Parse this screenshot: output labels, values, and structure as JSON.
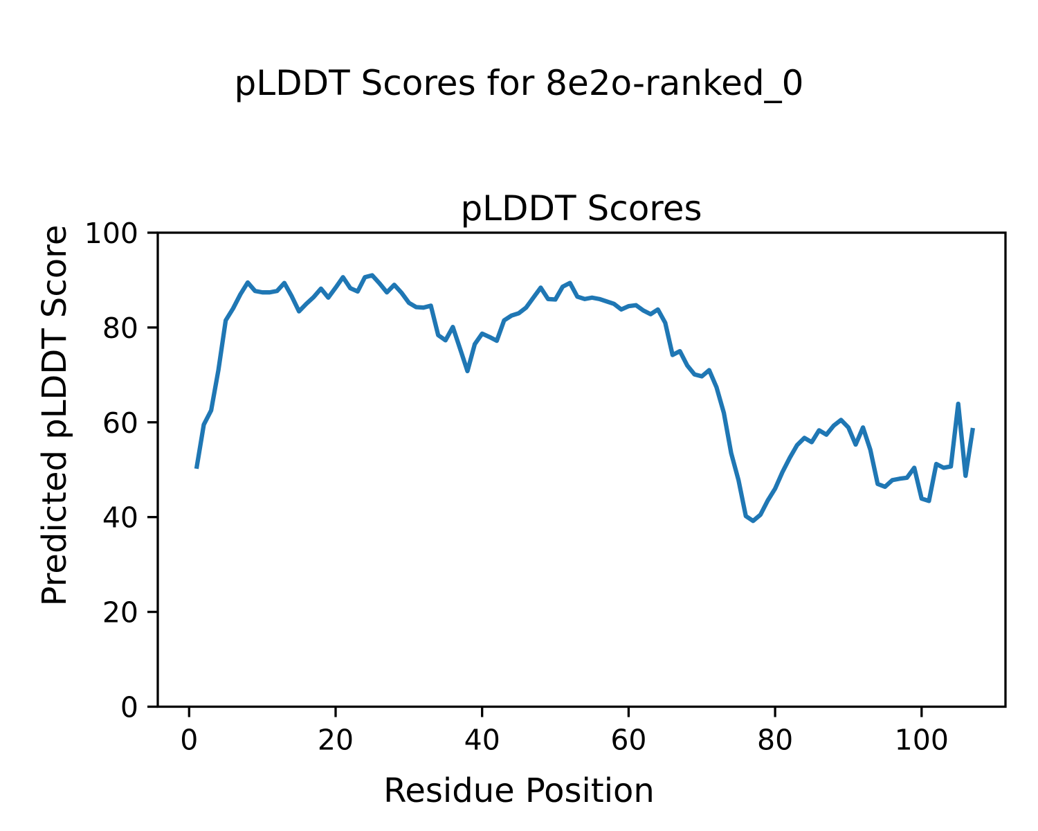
{
  "figure": {
    "suptitle": "pLDDT Scores for 8e2o-ranked_0"
  },
  "chart_data": {
    "type": "line",
    "title": "pLDDT Scores",
    "xlabel": "Residue Position",
    "ylabel": "Predicted pLDDT Score",
    "x_ticks": [
      0,
      20,
      40,
      60,
      80,
      100
    ],
    "y_ticks": [
      0,
      20,
      40,
      60,
      80,
      100
    ],
    "xlim": [
      -4.3,
      112.3
    ],
    "ylim": [
      0,
      100
    ],
    "grid": false,
    "legend_position": "none",
    "line_color": "#1f77b4",
    "series_name": "pLDDT",
    "x_start": 1,
    "values": [
      50.2,
      59.5,
      62.5,
      71.0,
      81.5,
      84.0,
      87.0,
      89.5,
      87.7,
      87.4,
      87.4,
      87.7,
      89.4,
      86.6,
      83.4,
      85.0,
      86.4,
      88.2,
      86.3,
      88.4,
      90.6,
      88.3,
      87.6,
      90.6,
      91.0,
      89.3,
      87.4,
      89.0,
      87.3,
      85.2,
      84.3,
      84.2,
      84.6,
      78.4,
      77.3,
      80.1,
      75.5,
      70.8,
      76.5,
      78.7,
      78.0,
      77.2,
      81.5,
      82.5,
      83.0,
      84.2,
      86.3,
      88.4,
      86.0,
      85.9,
      88.6,
      89.4,
      86.5,
      86.0,
      86.3,
      86.0,
      85.5,
      85.0,
      83.8,
      84.5,
      84.7,
      83.6,
      82.8,
      83.8,
      81.0,
      74.2,
      75.0,
      72.0,
      70.1,
      69.7,
      71.0,
      67.4,
      62.0,
      53.5,
      47.8,
      40.2,
      39.2,
      40.5,
      43.5,
      46.0,
      49.5,
      52.5,
      55.2,
      56.7,
      55.8,
      58.3,
      57.4,
      59.3,
      60.5,
      58.9,
      55.3,
      58.9,
      54.2,
      47.0,
      46.4,
      47.8,
      48.1,
      48.3,
      50.4,
      43.9,
      43.4,
      51.2,
      50.4,
      50.7,
      63.9,
      48.7,
      58.8
    ]
  }
}
